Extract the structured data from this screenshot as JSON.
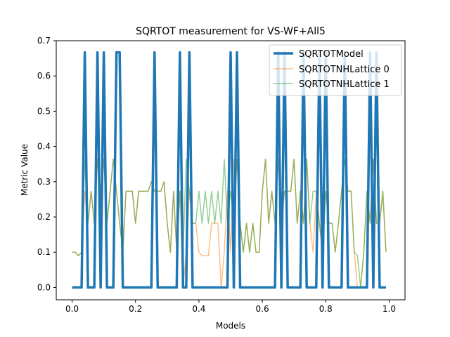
{
  "chart_data": {
    "type": "line",
    "title": "SQRTOT measurement for VS-WF+All5",
    "xlabel": "Models",
    "ylabel": "Metric Value",
    "xlim": [
      -0.05,
      1.05
    ],
    "ylim": [
      -0.035,
      0.7
    ],
    "xticks": [
      "0.0",
      "0.2",
      "0.4",
      "0.6",
      "0.8",
      "1.0"
    ],
    "yticks": [
      "0.0",
      "0.1",
      "0.2",
      "0.3",
      "0.4",
      "0.5",
      "0.6",
      "0.7"
    ],
    "legend_position": "top-right",
    "grid": false,
    "x": [
      0.0,
      0.01,
      0.02,
      0.03,
      0.04,
      0.05,
      0.06,
      0.07,
      0.08,
      0.09,
      0.1,
      0.11,
      0.12,
      0.13,
      0.14,
      0.15,
      0.16,
      0.17,
      0.18,
      0.19,
      0.2,
      0.21,
      0.22,
      0.23,
      0.24,
      0.25,
      0.26,
      0.27,
      0.28,
      0.29,
      0.3,
      0.31,
      0.32,
      0.33,
      0.34,
      0.35,
      0.36,
      0.37,
      0.38,
      0.39,
      0.4,
      0.41,
      0.42,
      0.43,
      0.44,
      0.45,
      0.46,
      0.47,
      0.48,
      0.49,
      0.5,
      0.51,
      0.52,
      0.53,
      0.54,
      0.55,
      0.56,
      0.57,
      0.58,
      0.59,
      0.6,
      0.61,
      0.62,
      0.63,
      0.64,
      0.65,
      0.66,
      0.67,
      0.68,
      0.69,
      0.7,
      0.71,
      0.72,
      0.73,
      0.74,
      0.75,
      0.76,
      0.77,
      0.78,
      0.79,
      0.8,
      0.81,
      0.82,
      0.83,
      0.84,
      0.85,
      0.86,
      0.87,
      0.88,
      0.89,
      0.9,
      0.91,
      0.92,
      0.93,
      0.94,
      0.95,
      0.96,
      0.97,
      0.98,
      0.99
    ],
    "series": [
      {
        "name": "SQRTOTModel",
        "color": "#1f77b4",
        "width": 3.5,
        "opacity": 1.0,
        "values": [
          0,
          0,
          0,
          0,
          0.667,
          0,
          0,
          0,
          0.667,
          0,
          0.667,
          0,
          0,
          0,
          0.667,
          0.667,
          0,
          0,
          0,
          0,
          0,
          0,
          0,
          0,
          0,
          0,
          0.667,
          0,
          0,
          0,
          0,
          0,
          0,
          0,
          0.667,
          0,
          0,
          0.667,
          0,
          0,
          0,
          0,
          0,
          0,
          0,
          0,
          0,
          0,
          0,
          0,
          0.667,
          0,
          0.667,
          0,
          0,
          0,
          0,
          0,
          0,
          0,
          0,
          0,
          0,
          0,
          0,
          0.667,
          0,
          0.667,
          0,
          0,
          0,
          0,
          0,
          0.667,
          0,
          0,
          0,
          0,
          0.667,
          0,
          0.667,
          0,
          0,
          0,
          0,
          0,
          0.667,
          0,
          0,
          0,
          0,
          0,
          0,
          0,
          0.667,
          0,
          0.667,
          0,
          0,
          0
        ]
      },
      {
        "name": "SQRTOTNHLattice 0",
        "color": "#ff7f0e",
        "width": 1.5,
        "opacity": 0.5,
        "values": [
          0.1,
          0.1,
          0.09,
          0.1,
          0.273,
          0.182,
          0.273,
          0.182,
          0.364,
          0.273,
          0.364,
          0.182,
          0.273,
          0.364,
          0.273,
          0.182,
          0.1,
          0.273,
          0.273,
          0.273,
          0.182,
          0.273,
          0.273,
          0.273,
          0.273,
          0.3,
          0.273,
          0.273,
          0.273,
          0.3,
          0.182,
          0.1,
          0.273,
          0.1,
          0.273,
          0.0,
          0.1,
          0.273,
          0.182,
          0.182,
          0.1,
          0.09,
          0.09,
          0.09,
          0.182,
          0.182,
          0.182,
          0.0,
          0.1,
          0.273,
          0.1,
          0.364,
          0.364,
          0.182,
          0.1,
          0.182,
          0.1,
          0.182,
          0.1,
          0.1,
          0.273,
          0.364,
          0.182,
          0.273,
          0.182,
          0.364,
          0.182,
          0.273,
          0.273,
          0.273,
          0.364,
          0.182,
          0.273,
          0.182,
          0.364,
          0.182,
          0.1,
          0.273,
          0.182,
          0.1,
          0.273,
          0.182,
          0.182,
          0.1,
          0.182,
          0.273,
          0.364,
          0.273,
          0.273,
          0.1,
          0.0,
          0.0,
          0.1,
          0.273,
          0.182,
          0.364,
          0.182,
          0.182,
          0.273,
          0.1
        ]
      },
      {
        "name": "SQRTOTNHLattice 1",
        "color": "#2ca02c",
        "width": 1.5,
        "opacity": 0.5,
        "values": [
          0.1,
          0.1,
          0.09,
          0.1,
          0.364,
          0.182,
          0.273,
          0.182,
          0.364,
          0.273,
          0.364,
          0.182,
          0.273,
          0.364,
          0.273,
          0.182,
          0.1,
          0.273,
          0.273,
          0.273,
          0.182,
          0.273,
          0.273,
          0.273,
          0.273,
          0.3,
          0.273,
          0.273,
          0.273,
          0.3,
          0.182,
          0.1,
          0.273,
          0.1,
          0.273,
          0.1,
          0.364,
          0.273,
          0.182,
          0.182,
          0.273,
          0.182,
          0.273,
          0.182,
          0.273,
          0.182,
          0.273,
          0.182,
          0.364,
          0.182,
          0.273,
          0.182,
          0.364,
          0.182,
          0.1,
          0.182,
          0.1,
          0.182,
          0.1,
          0.1,
          0.273,
          0.364,
          0.182,
          0.273,
          0.182,
          0.364,
          0.182,
          0.273,
          0.273,
          0.273,
          0.364,
          0.182,
          0.273,
          0.182,
          0.364,
          0.182,
          0.273,
          0.273,
          0.182,
          0.1,
          0.273,
          0.182,
          0.182,
          0.1,
          0.182,
          0.273,
          0.364,
          0.273,
          0.273,
          0.1,
          0.09,
          0.0,
          0.1,
          0.273,
          0.182,
          0.364,
          0.182,
          0.182,
          0.273,
          0.1
        ]
      }
    ]
  }
}
